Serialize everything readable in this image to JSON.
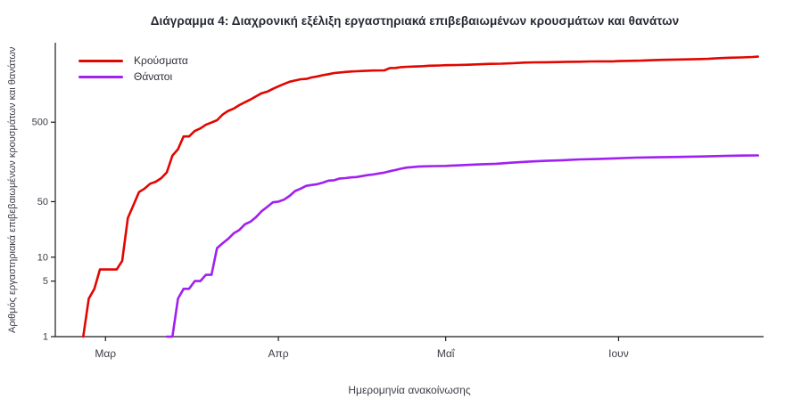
{
  "title": "Διάγραμμα 4: Διαχρονική εξέλιξη εργαστηριακά επιβεβαιωμένων κρουσμάτων και θανάτων",
  "chart_data": {
    "type": "line",
    "title": "Διάγραμμα 4: Διαχρονική εξέλιξη εργαστηριακά επιβεβαιωμένων κρουσμάτων και θανάτων",
    "xlabel": "Ημερομηνία ανακοίνωσης",
    "ylabel": "Αριθμός εργαστηριακά επιβεβαιωμένων κρουσμάτων και θανάτων",
    "y_scale": "log",
    "y_ticks": [
      1,
      5,
      10,
      50,
      500
    ],
    "y_domain": [
      1,
      5000
    ],
    "x_unit": "days",
    "x_domain_days": [
      -5,
      122
    ],
    "x_ticks": [
      {
        "label": "Μαρ",
        "day": 4
      },
      {
        "label": "Απρ",
        "day": 35
      },
      {
        "label": "Μαΐ",
        "day": 65
      },
      {
        "label": "Ιουν",
        "day": 96
      }
    ],
    "grid": false,
    "legend_position": "top-left",
    "series": [
      {
        "name": "Κρούσματα",
        "key": "cases",
        "color": "#e10600",
        "points": [
          [
            0,
            1
          ],
          [
            1,
            3
          ],
          [
            2,
            4
          ],
          [
            3,
            7
          ],
          [
            6,
            7
          ],
          [
            7,
            9
          ],
          [
            8,
            31
          ],
          [
            9,
            45
          ],
          [
            10,
            66
          ],
          [
            11,
            73
          ],
          [
            12,
            84
          ],
          [
            13,
            89
          ],
          [
            14,
            99
          ],
          [
            15,
            117
          ],
          [
            16,
            190
          ],
          [
            17,
            228
          ],
          [
            18,
            331
          ],
          [
            19,
            331
          ],
          [
            20,
            387
          ],
          [
            21,
            418
          ],
          [
            22,
            464
          ],
          [
            23,
            495
          ],
          [
            24,
            530
          ],
          [
            25,
            624
          ],
          [
            26,
            695
          ],
          [
            27,
            743
          ],
          [
            28,
            821
          ],
          [
            29,
            892
          ],
          [
            30,
            966
          ],
          [
            31,
            1061
          ],
          [
            32,
            1156
          ],
          [
            33,
            1212
          ],
          [
            34,
            1314
          ],
          [
            35,
            1415
          ],
          [
            36,
            1514
          ],
          [
            37,
            1613
          ],
          [
            38,
            1673
          ],
          [
            39,
            1735
          ],
          [
            40,
            1755
          ],
          [
            41,
            1832
          ],
          [
            42,
            1884
          ],
          [
            43,
            1955
          ],
          [
            44,
            2011
          ],
          [
            45,
            2081
          ],
          [
            46,
            2114
          ],
          [
            47,
            2145
          ],
          [
            48,
            2170
          ],
          [
            49,
            2192
          ],
          [
            50,
            2207
          ],
          [
            51,
            2224
          ],
          [
            52,
            2235
          ],
          [
            54,
            2245
          ],
          [
            55,
            2401
          ],
          [
            56,
            2408
          ],
          [
            57,
            2463
          ],
          [
            58,
            2490
          ],
          [
            59,
            2506
          ],
          [
            60,
            2517
          ],
          [
            61,
            2534
          ],
          [
            62,
            2566
          ],
          [
            63,
            2576
          ],
          [
            64,
            2591
          ],
          [
            65,
            2612
          ],
          [
            67,
            2626
          ],
          [
            69,
            2642
          ],
          [
            71,
            2678
          ],
          [
            73,
            2710
          ],
          [
            75,
            2726
          ],
          [
            77,
            2760
          ],
          [
            79,
            2810
          ],
          [
            81,
            2834
          ],
          [
            83,
            2840
          ],
          [
            85,
            2853
          ],
          [
            87,
            2876
          ],
          [
            89,
            2882
          ],
          [
            91,
            2906
          ],
          [
            93,
            2915
          ],
          [
            95,
            2918
          ],
          [
            96,
            2937
          ],
          [
            98,
            2958
          ],
          [
            100,
            2980
          ],
          [
            102,
            3016
          ],
          [
            104,
            3049
          ],
          [
            106,
            3072
          ],
          [
            108,
            3088
          ],
          [
            110,
            3112
          ],
          [
            112,
            3134
          ],
          [
            114,
            3203
          ],
          [
            116,
            3237
          ],
          [
            118,
            3266
          ],
          [
            120,
            3310
          ],
          [
            121,
            3343
          ]
        ]
      },
      {
        "name": "Θάνατοι",
        "key": "deaths",
        "color": "#a020f0",
        "points": [
          [
            15,
            1
          ],
          [
            16,
            1
          ],
          [
            17,
            3
          ],
          [
            18,
            4
          ],
          [
            19,
            4
          ],
          [
            20,
            5
          ],
          [
            21,
            5
          ],
          [
            22,
            6
          ],
          [
            23,
            6
          ],
          [
            24,
            13
          ],
          [
            25,
            15
          ],
          [
            26,
            17
          ],
          [
            27,
            20
          ],
          [
            28,
            22
          ],
          [
            29,
            26
          ],
          [
            30,
            28
          ],
          [
            31,
            32
          ],
          [
            32,
            38
          ],
          [
            33,
            43
          ],
          [
            34,
            49
          ],
          [
            35,
            50
          ],
          [
            36,
            53
          ],
          [
            37,
            59
          ],
          [
            38,
            68
          ],
          [
            39,
            73
          ],
          [
            40,
            79
          ],
          [
            41,
            81
          ],
          [
            42,
            83
          ],
          [
            43,
            87
          ],
          [
            44,
            92
          ],
          [
            45,
            93
          ],
          [
            46,
            98
          ],
          [
            47,
            99
          ],
          [
            48,
            101
          ],
          [
            49,
            102
          ],
          [
            50,
            105
          ],
          [
            51,
            108
          ],
          [
            52,
            110
          ],
          [
            53,
            113
          ],
          [
            54,
            116
          ],
          [
            55,
            121
          ],
          [
            56,
            125
          ],
          [
            57,
            130
          ],
          [
            58,
            134
          ],
          [
            59,
            136
          ],
          [
            60,
            138
          ],
          [
            61,
            139
          ],
          [
            63,
            140
          ],
          [
            65,
            141
          ],
          [
            68,
            144
          ],
          [
            71,
            147
          ],
          [
            74,
            150
          ],
          [
            77,
            155
          ],
          [
            80,
            160
          ],
          [
            83,
            163
          ],
          [
            86,
            166
          ],
          [
            89,
            170
          ],
          [
            92,
            172
          ],
          [
            95,
            175
          ],
          [
            99,
            179
          ],
          [
            103,
            181
          ],
          [
            107,
            183
          ],
          [
            111,
            185
          ],
          [
            115,
            188
          ],
          [
            118,
            190
          ],
          [
            121,
            191
          ]
        ]
      }
    ]
  }
}
